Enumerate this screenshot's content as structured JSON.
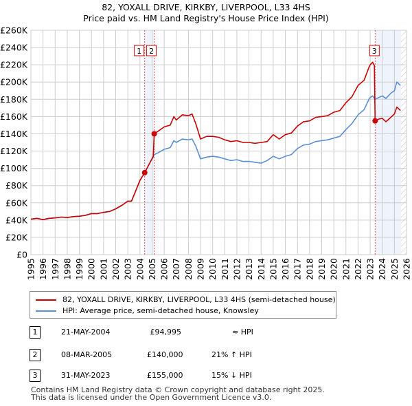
{
  "title": "82, YOXALL DRIVE, KIRKBY, LIVERPOOL, L33 4HS",
  "subtitle": "Price paid vs. HM Land Registry's House Price Index (HPI)",
  "chart_data": {
    "type": "line",
    "xlim": [
      1995,
      2026
    ],
    "ylim": [
      0,
      260000
    ],
    "y_ticks": [
      0,
      20000,
      40000,
      60000,
      80000,
      100000,
      120000,
      140000,
      160000,
      180000,
      200000,
      220000,
      240000,
      260000
    ],
    "y_tick_labels": [
      "£0",
      "£20K",
      "£40K",
      "£60K",
      "£80K",
      "£100K",
      "£120K",
      "£140K",
      "£160K",
      "£180K",
      "£200K",
      "£220K",
      "£240K",
      "£260K"
    ],
    "x_ticks": [
      1995,
      1996,
      1997,
      1998,
      1999,
      2000,
      2001,
      2002,
      2003,
      2004,
      2005,
      2006,
      2007,
      2008,
      2009,
      2010,
      2011,
      2012,
      2013,
      2014,
      2015,
      2016,
      2017,
      2018,
      2019,
      2020,
      2021,
      2022,
      2023,
      2024,
      2025,
      2026
    ],
    "x_tick_labels": [
      "1995",
      "1996",
      "1997",
      "1998",
      "1999",
      "2000",
      "2001",
      "2002",
      "2003",
      "2004",
      "2005",
      "2006",
      "2007",
      "2008",
      "2009",
      "2010",
      "2011",
      "2012",
      "2013",
      "2014",
      "2015",
      "2016",
      "2017",
      "2018",
      "2019",
      "2020",
      "2021",
      "2022",
      "2023",
      "2024",
      "2025",
      "2026"
    ],
    "grid": true,
    "data_end": 2025.55,
    "series": [
      {
        "name": "82, YOXALL DRIVE, KIRKBY, LIVERPOOL, L33 4HS (semi-detached house)",
        "color": "#cc0000",
        "x": [
          1995.0,
          1995.5,
          1996.0,
          1996.5,
          1997.0,
          1997.5,
          1998.0,
          1998.5,
          1999.0,
          1999.5,
          2000.0,
          2000.5,
          2001.0,
          2001.5,
          2002.0,
          2002.5,
          2003.0,
          2003.3,
          2003.6,
          2004.0,
          2004.4,
          2004.8,
          2005.1,
          2005.18,
          2005.5,
          2006.0,
          2006.5,
          2006.8,
          2007.0,
          2007.5,
          2008.0,
          2008.3,
          2008.6,
          2009.0,
          2009.5,
          2010.0,
          2010.5,
          2011.0,
          2011.5,
          2012.0,
          2012.5,
          2013.0,
          2013.5,
          2014.0,
          2014.5,
          2015.0,
          2015.5,
          2016.0,
          2016.5,
          2017.0,
          2017.5,
          2018.0,
          2018.5,
          2019.0,
          2019.5,
          2020.0,
          2020.5,
          2021.0,
          2021.5,
          2022.0,
          2022.5,
          2022.9,
          2023.0,
          2023.2,
          2023.35,
          2023.41,
          2023.7,
          2024.0,
          2024.3,
          2024.7,
          2025.0,
          2025.2,
          2025.5
        ],
        "values": [
          41,
          42,
          40.5,
          42,
          42.5,
          43.5,
          43,
          44,
          44.5,
          45.5,
          47.5,
          47.5,
          49,
          50,
          53,
          57,
          62,
          62,
          72,
          86,
          95,
          106,
          114,
          140,
          143,
          148,
          150,
          160,
          156,
          162,
          161,
          163,
          152,
          134,
          137,
          137,
          136,
          133,
          131,
          132,
          130,
          130,
          129,
          130,
          131,
          139,
          134,
          139,
          141,
          149,
          154,
          155,
          159,
          160,
          161,
          165,
          167,
          176,
          183,
          196,
          202,
          217,
          220,
          223,
          219,
          155,
          157,
          158,
          154,
          159,
          163,
          171,
          167
        ]
      },
      {
        "name": "HPI: Average price, semi-detached house, Knowsley",
        "color": "#5b8fd4",
        "x": [
          1995.0,
          1995.5,
          1996.0,
          1996.5,
          1997.0,
          1997.5,
          1998.0,
          1998.5,
          1999.0,
          1999.5,
          2000.0,
          2000.5,
          2001.0,
          2001.5,
          2002.0,
          2002.5,
          2003.0,
          2003.3,
          2003.6,
          2004.0,
          2004.4,
          2004.8,
          2005.1,
          2005.18,
          2005.5,
          2006.0,
          2006.5,
          2006.8,
          2007.0,
          2007.5,
          2008.0,
          2008.3,
          2008.6,
          2009.0,
          2009.5,
          2010.0,
          2010.5,
          2011.0,
          2011.5,
          2012.0,
          2012.5,
          2013.0,
          2013.5,
          2014.0,
          2014.5,
          2015.0,
          2015.5,
          2016.0,
          2016.5,
          2017.0,
          2017.5,
          2018.0,
          2018.5,
          2019.0,
          2019.5,
          2020.0,
          2020.5,
          2021.0,
          2021.5,
          2022.0,
          2022.5,
          2022.9,
          2023.0,
          2023.2,
          2023.35,
          2023.41,
          2023.7,
          2024.0,
          2024.3,
          2024.7,
          2025.0,
          2025.2,
          2025.5
        ],
        "values": [
          41,
          42,
          40.5,
          42,
          42.5,
          43.5,
          43,
          44,
          44.5,
          45.5,
          47.5,
          47.5,
          49,
          50,
          53,
          57,
          62,
          62,
          72,
          86,
          95,
          106,
          113,
          116,
          118,
          122,
          124,
          132,
          130,
          134,
          133,
          134,
          126,
          111,
          113,
          114,
          113,
          111,
          109,
          110,
          108,
          108,
          107,
          106,
          109,
          114,
          111,
          114,
          116,
          123,
          127,
          128,
          131,
          132,
          133,
          135,
          137,
          145,
          152,
          162,
          168,
          180,
          182,
          184,
          181,
          180,
          182,
          184,
          181,
          187,
          190,
          200,
          196
        ]
      }
    ],
    "value_unit": "£K",
    "sales": [
      {
        "label": "1",
        "x": 2004.39,
        "value": 94995
      },
      {
        "label": "2",
        "x": 2005.18,
        "value": 140000
      },
      {
        "label": "3",
        "x": 2023.41,
        "value": 155000
      }
    ]
  },
  "legend": [
    {
      "label": "82, YOXALL DRIVE, KIRKBY, LIVERPOOL, L33 4HS (semi-detached house)",
      "color": "#cc0000"
    },
    {
      "label": "HPI: Average price, semi-detached house, Knowsley",
      "color": "#5b8fd4"
    }
  ],
  "transactions": [
    {
      "num": "1",
      "date": "21-MAY-2004",
      "price": "£94,995",
      "relation": "≈ HPI"
    },
    {
      "num": "2",
      "date": "08-MAR-2005",
      "price": "£140,000",
      "relation": "21% ↑ HPI"
    },
    {
      "num": "3",
      "date": "31-MAY-2023",
      "price": "£155,000",
      "relation": "15% ↓ HPI"
    }
  ],
  "footer": [
    "Contains HM Land Registry data © Crown copyright and database right 2025.",
    "This data is licensed under the Open Government Licence v3.0."
  ]
}
